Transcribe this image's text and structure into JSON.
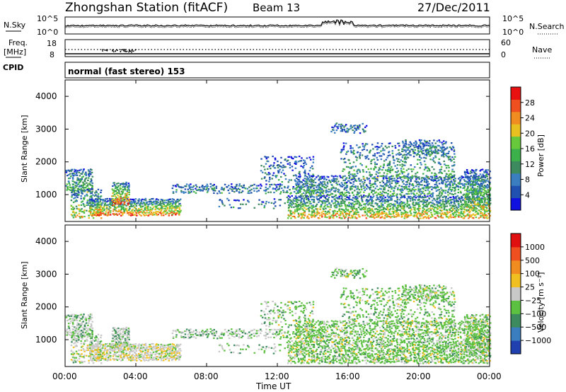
{
  "header": {
    "station": "Zhongshan Station (fitACF)",
    "beam": "Beam 13",
    "date": "27/Dec/2011"
  },
  "strip_labels": {
    "nsky": "N.Sky",
    "nsearch": "N.Search",
    "freq": "Freq.",
    "freq_unit": "[MHz]",
    "nave": "Nave",
    "cpid": "CPID",
    "cpid_value": "normal (fast stereo) 153",
    "noise_ticks": [
      "10^5",
      "10^0"
    ],
    "freq_ticks": [
      "18",
      "8"
    ],
    "nave_ticks": [
      "60",
      "0"
    ]
  },
  "chart_data": [
    {
      "type": "heatmap",
      "name": "power",
      "ylabel": "Slant Range [km]",
      "y_ticks": [
        "4000",
        "3000",
        "2000",
        "1000"
      ],
      "ylim": [
        180,
        4500
      ],
      "colorbar_label": "Power [dB]",
      "colorbar_ticks": [
        "28",
        "24",
        "20",
        "16",
        "12",
        "8",
        "4"
      ],
      "colors": [
        "#1010e0",
        "#2050b0",
        "#3a7ec0",
        "#3d8a5e",
        "#3cb04a",
        "#66c83a",
        "#e8c020",
        "#f08c20",
        "#f05020",
        "#e81010"
      ]
    },
    {
      "type": "heatmap",
      "name": "velocity",
      "ylabel": "Slant Range [km]",
      "y_ticks": [
        "4000",
        "3000",
        "2000",
        "1000"
      ],
      "ylim": [
        180,
        4500
      ],
      "colorbar_label": "Velocity [m s⁻¹]",
      "colorbar_ticks": [
        "1000",
        "500",
        "100",
        "25",
        "−25",
        "−100",
        "−500",
        "−1000"
      ],
      "colors": [
        "#2040b0",
        "#3a7ec0",
        "#3d8a5e",
        "#5cc040",
        "#c8c8c8",
        "#f0c020",
        "#f08c20",
        "#f05020",
        "#e01010"
      ]
    }
  ],
  "x_axis": {
    "label": "Time UT",
    "ticks": [
      "00:00",
      "04:00",
      "08:00",
      "12:00",
      "16:00",
      "20:00",
      "00:00"
    ]
  }
}
